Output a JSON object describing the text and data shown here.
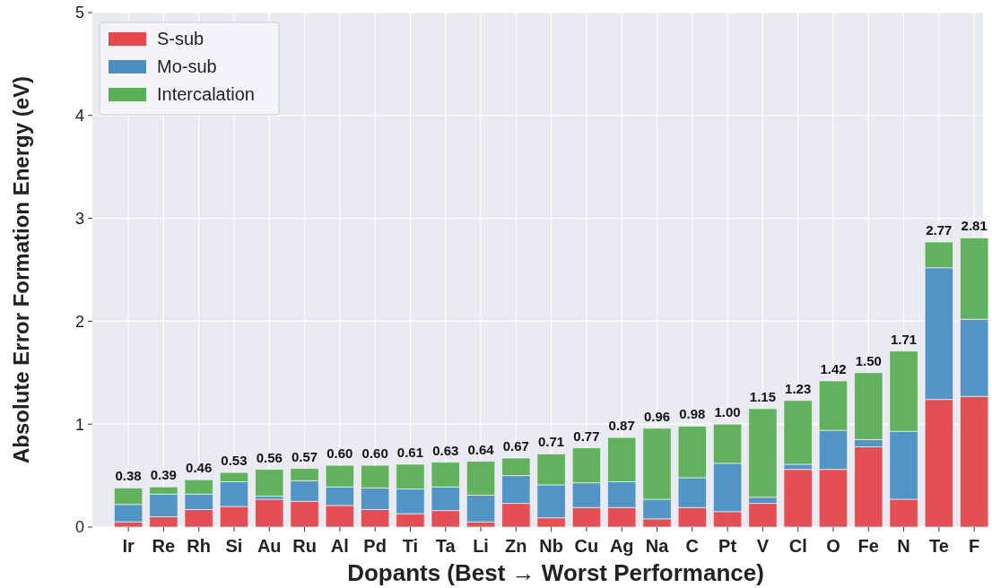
{
  "chart_data": {
    "type": "bar",
    "stacked": true,
    "xlabel": "Dopants (Best → Worst Performance)",
    "ylabel": "Absolute Error Formation Energy (eV)",
    "categories": [
      "Ir",
      "Re",
      "Rh",
      "Si",
      "Au",
      "Ru",
      "Al",
      "Pd",
      "Ti",
      "Ta",
      "Li",
      "Zn",
      "Nb",
      "Cu",
      "Ag",
      "Na",
      "C",
      "Pt",
      "V",
      "Cl",
      "O",
      "Fe",
      "N",
      "Te",
      "F"
    ],
    "series": [
      {
        "name": "S-sub",
        "color": "#e4474c",
        "values": [
          0.05,
          0.1,
          0.17,
          0.2,
          0.27,
          0.25,
          0.21,
          0.17,
          0.13,
          0.16,
          0.05,
          0.23,
          0.09,
          0.19,
          0.19,
          0.08,
          0.19,
          0.15,
          0.23,
          0.56,
          0.56,
          0.78,
          0.27,
          1.24,
          1.27
        ]
      },
      {
        "name": "Mo-sub",
        "color": "#4a8fc3",
        "values": [
          0.17,
          0.22,
          0.15,
          0.24,
          0.03,
          0.2,
          0.18,
          0.21,
          0.24,
          0.23,
          0.26,
          0.27,
          0.32,
          0.24,
          0.25,
          0.19,
          0.29,
          0.47,
          0.06,
          0.05,
          0.38,
          0.07,
          0.66,
          1.28,
          0.75
        ]
      },
      {
        "name": "Intercalation",
        "color": "#5aae55",
        "values": [
          0.16,
          0.07,
          0.14,
          0.09,
          0.26,
          0.12,
          0.21,
          0.22,
          0.24,
          0.24,
          0.33,
          0.17,
          0.3,
          0.34,
          0.43,
          0.69,
          0.5,
          0.38,
          0.86,
          0.62,
          0.48,
          0.65,
          0.78,
          0.25,
          0.79
        ]
      }
    ],
    "totals": [
      "0.38",
      "0.39",
      "0.46",
      "0.53",
      "0.56",
      "0.57",
      "0.60",
      "0.60",
      "0.61",
      "0.63",
      "0.64",
      "0.67",
      "0.71",
      "0.77",
      "0.87",
      "0.96",
      "0.98",
      "1.00",
      "1.15",
      "1.23",
      "1.42",
      "1.50",
      "1.71",
      "2.77",
      "2.81"
    ],
    "ylim": [
      0,
      5
    ],
    "yticks": [
      0,
      1,
      2,
      3,
      4,
      5
    ],
    "grid": true,
    "legend": "top left"
  }
}
